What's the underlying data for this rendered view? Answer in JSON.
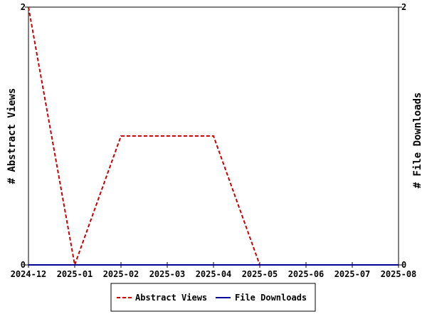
{
  "chart_data": {
    "type": "line",
    "title": "",
    "x": [
      "2024-12",
      "2025-01",
      "2025-02",
      "2025-03",
      "2025-04",
      "2025-05",
      "2025-06",
      "2025-07",
      "2025-08"
    ],
    "series": [
      {
        "name": "Abstract Views",
        "axis": "left",
        "color": "#cc0000",
        "dash": "dashed",
        "values": [
          2,
          0,
          1,
          1,
          1,
          0,
          0,
          0,
          0
        ]
      },
      {
        "name": "File Downloads",
        "axis": "right",
        "color": "#000099",
        "dash": "solid",
        "values": [
          0,
          0,
          0,
          0,
          0,
          0,
          0,
          0,
          0
        ]
      }
    ],
    "y_left": {
      "label": "# Abstract Views",
      "ylim": [
        0,
        2
      ],
      "ticks": [
        "0",
        "2"
      ]
    },
    "y_right": {
      "label": "# File Downloads",
      "ylim": [
        0,
        2
      ],
      "ticks": [
        "0",
        "2"
      ]
    },
    "grid": false,
    "legend_position": "bottom"
  }
}
